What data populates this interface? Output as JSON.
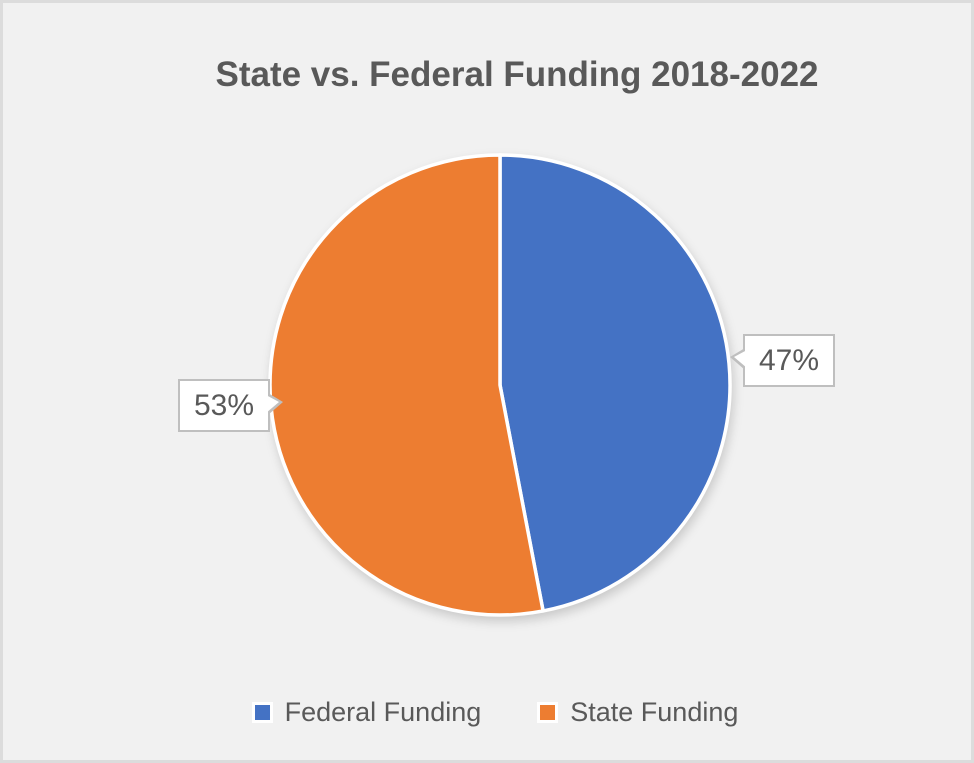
{
  "chart_data": {
    "type": "pie",
    "title": "State vs. Federal Funding 2018-2022",
    "slices": [
      {
        "label": "Federal Funding",
        "value": 47,
        "display": "47%",
        "color": "#4472C4"
      },
      {
        "label": "State Funding",
        "value": 53,
        "display": "53%",
        "color": "#ED7D31"
      }
    ],
    "start_angle_deg": 0,
    "direction": "clockwise",
    "legend": {
      "position": "bottom",
      "entries": [
        "Federal Funding",
        "State Funding"
      ]
    },
    "slice_separator_color": "#ffffff",
    "label_style": "callout",
    "text_color": "#595959",
    "background_color": "#f1f1f1",
    "frame_border_color": "#dcdcdc",
    "callout_border_color": "#bfbfbf"
  }
}
